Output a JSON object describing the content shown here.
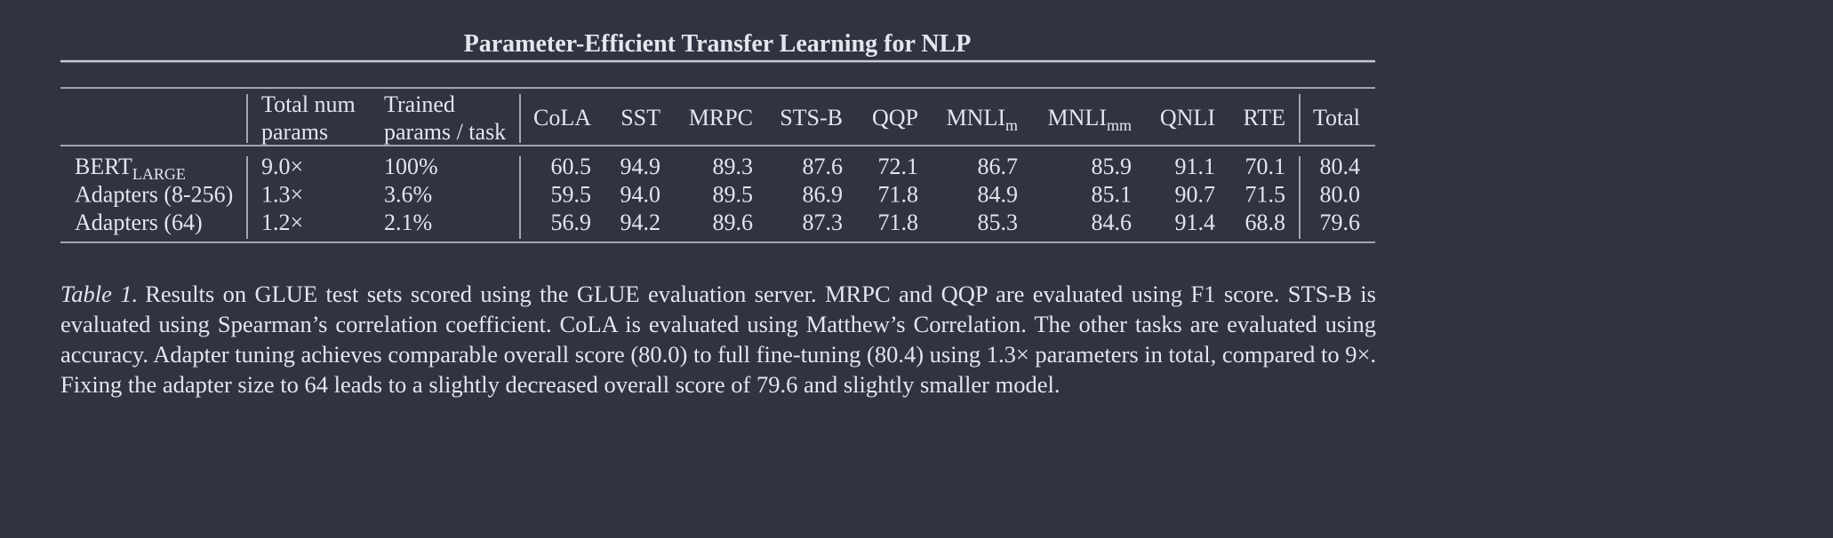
{
  "header": {
    "title": "Parameter-Efficient Transfer Learning for NLP"
  },
  "table": {
    "columns": [
      {
        "lines": [
          "Total num",
          "params"
        ]
      },
      {
        "lines": [
          "Trained",
          "params / task"
        ]
      },
      {
        "text": "CoLA"
      },
      {
        "text": "SST"
      },
      {
        "text": "MRPC"
      },
      {
        "text": "STS-B"
      },
      {
        "text": "QQP"
      },
      {
        "text": "MNLI",
        "sub": "m"
      },
      {
        "text": "MNLI",
        "sub": "mm"
      },
      {
        "text": "QNLI"
      },
      {
        "text": "RTE"
      },
      {
        "text": "Total"
      }
    ],
    "rows": [
      {
        "model": {
          "text": "BERT",
          "sub": "LARGE"
        },
        "cells": [
          "9.0×",
          "100%",
          "60.5",
          "94.9",
          "89.3",
          "87.6",
          "72.1",
          "86.7",
          "85.9",
          "91.1",
          "70.1",
          "80.4"
        ]
      },
      {
        "model": {
          "text": "Adapters (8-256)"
        },
        "cells": [
          "1.3×",
          "3.6%",
          "59.5",
          "94.0",
          "89.5",
          "86.9",
          "71.8",
          "84.9",
          "85.1",
          "90.7",
          "71.5",
          "80.0"
        ]
      },
      {
        "model": {
          "text": "Adapters (64)"
        },
        "cells": [
          "1.2×",
          "2.1%",
          "56.9",
          "94.2",
          "89.6",
          "87.3",
          "71.8",
          "85.3",
          "84.6",
          "91.4",
          "68.8",
          "79.6"
        ]
      }
    ]
  },
  "caption": {
    "label": "Table 1.",
    "text": "Results on GLUE test sets scored using the GLUE evaluation server. MRPC and QQP are evaluated using F1 score. STS-B is evaluated using Spearman’s correlation coefficient. CoLA is evaluated using Matthew’s Correlation. The other tasks are evaluated using accuracy. Adapter tuning achieves comparable overall score (80.0) to full fine-tuning (80.4) using 1.3× parameters in total, compared to 9×. Fixing the adapter size to 64 leads to a slightly decreased overall score of 79.6 and slightly smaller model."
  }
}
